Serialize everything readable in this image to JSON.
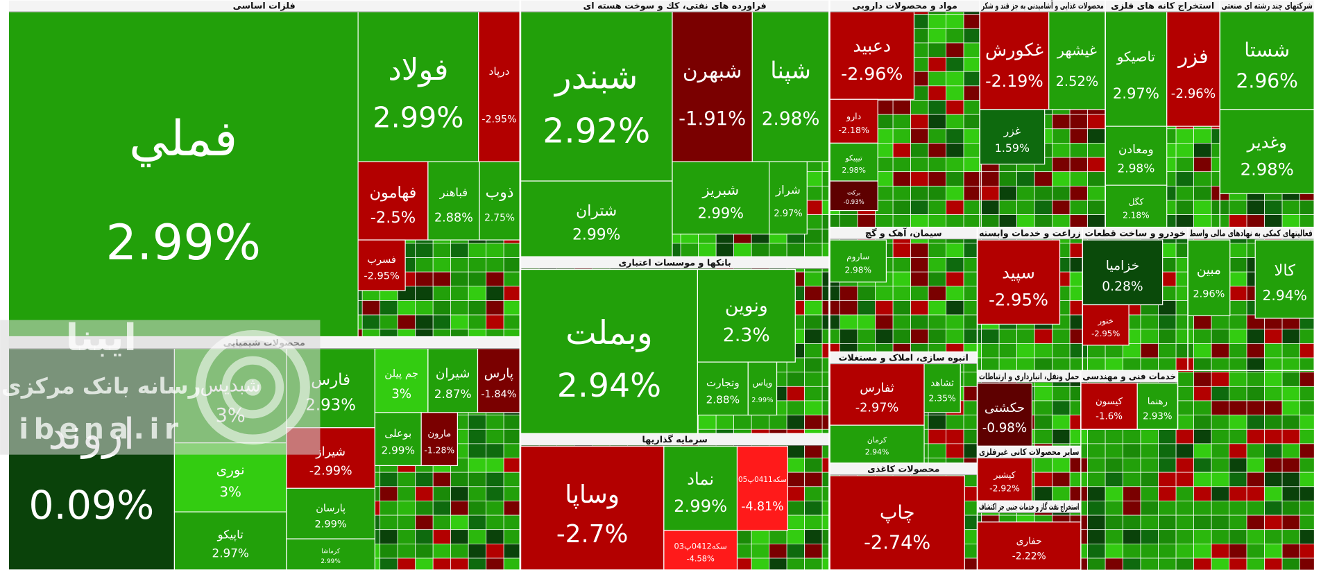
{
  "watermark": {
    "brand": "ایبنا",
    "tagline": "رسانه بانک مرکزی",
    "site": "ibena.ir"
  },
  "sectors": [
    {
      "name": "فلزات اساسی",
      "tiles": [
        {
          "name": "فملي",
          "change": "2.99%",
          "color": "#22a00a"
        },
        {
          "name": "فولاد",
          "change": "2.99%",
          "color": "#22a00a"
        },
        {
          "name": "درپاد",
          "change": "-2.95%",
          "color": "#b30000"
        },
        {
          "name": "فهامون",
          "change": "-2.5%",
          "color": "#b30000"
        },
        {
          "name": "فباهنر",
          "change": "2.88%",
          "color": "#22a00a"
        },
        {
          "name": "ذوب",
          "change": "2.75%",
          "color": "#22a00a"
        },
        {
          "name": "فسرب",
          "change": "-2.95%",
          "color": "#b30000"
        }
      ]
    },
    {
      "name": "محصولات شیمیایی",
      "tiles": [
        {
          "name": "اروند",
          "change": "0.09%",
          "color": "#0a420a"
        },
        {
          "name": "شبدیس",
          "change": "3%",
          "color": "#22a00a"
        },
        {
          "name": "نوری",
          "change": "3%",
          "color": "#33cc11"
        },
        {
          "name": "تاپیکو",
          "change": "2.97%",
          "color": "#22a00a"
        },
        {
          "name": "فارس",
          "change": "2.93%",
          "color": "#22a00a"
        },
        {
          "name": "شیراز",
          "change": "-2.99%",
          "color": "#b30000"
        },
        {
          "name": "پارسان",
          "change": "2.99%",
          "color": "#22a00a"
        },
        {
          "name": "کرماشا",
          "change": "2.99%",
          "color": "#22a00a"
        },
        {
          "name": "جم پیلن",
          "change": "3%",
          "color": "#33cc11"
        },
        {
          "name": "شیران",
          "change": "2.87%",
          "color": "#22a00a"
        },
        {
          "name": "پارس",
          "change": "-1.84%",
          "color": "#7a0000"
        },
        {
          "name": "بوعلی",
          "change": "2.99%",
          "color": "#22a00a"
        },
        {
          "name": "مارون",
          "change": "-1.28%",
          "color": "#7a0000"
        }
      ]
    },
    {
      "name": "فراورده های نفتی، کك و سوخت هسته ای",
      "tiles": [
        {
          "name": "شبندر",
          "change": "2.92%",
          "color": "#22a00a"
        },
        {
          "name": "شتران",
          "change": "2.99%",
          "color": "#22a00a"
        },
        {
          "name": "شبهرن",
          "change": "-1.91%",
          "color": "#7a0000"
        },
        {
          "name": "شپنا",
          "change": "2.98%",
          "color": "#22a00a"
        },
        {
          "name": "شبریز",
          "change": "2.99%",
          "color": "#22a00a"
        },
        {
          "name": "شراز",
          "change": "2.97%",
          "color": "#22a00a"
        }
      ]
    },
    {
      "name": "بانکها و موسسات اعتباری",
      "tiles": [
        {
          "name": "وبملت",
          "change": "2.94%",
          "color": "#22a00a"
        },
        {
          "name": "ونوين",
          "change": "2.3%",
          "color": "#22a00a"
        },
        {
          "name": "وتجارت",
          "change": "2.88%",
          "color": "#22a00a"
        },
        {
          "name": "وپاس",
          "change": "2.99%",
          "color": "#22a00a"
        }
      ]
    },
    {
      "name": "سرمایه گذاریها",
      "tiles": [
        {
          "name": "وساپا",
          "change": "-2.7%",
          "color": "#b30000"
        },
        {
          "name": "نماد",
          "change": "2.99%",
          "color": "#22a00a"
        },
        {
          "name": "سکه0411پ05",
          "change": "-4.81%",
          "color": "#ff1a1a"
        },
        {
          "name": "سکه0412پ03",
          "change": "-4.58%",
          "color": "#ff1a1a"
        }
      ]
    },
    {
      "name": "مواد و محصولات دارویی",
      "tiles": [
        {
          "name": "دعبید",
          "change": "-2.96%",
          "color": "#b30000"
        },
        {
          "name": "دارو",
          "change": "-2.18%",
          "color": "#b30000"
        },
        {
          "name": "تیپیکو",
          "change": "2.98%",
          "color": "#22a00a"
        },
        {
          "name": "برکت",
          "change": "-0.93%",
          "color": "#5e0000"
        }
      ]
    },
    {
      "name": "محصولات غذایی و آشامیدنی به جز قند و شکر",
      "tiles": [
        {
          "name": "غکورش",
          "change": "-2.19%",
          "color": "#b30000"
        },
        {
          "name": "غیشهر",
          "change": "2.52%",
          "color": "#22a00a"
        },
        {
          "name": "غزر",
          "change": "1.59%",
          "color": "#0e6a0e"
        }
      ]
    },
    {
      "name": "استخراج کانه های فلزی",
      "tiles": [
        {
          "name": "تاصیکو",
          "change": "2.97%",
          "color": "#22a00a"
        },
        {
          "name": "فزر",
          "change": "-2.96%",
          "color": "#b30000"
        },
        {
          "name": "ومعادن",
          "change": "2.98%",
          "color": "#22a00a"
        },
        {
          "name": "کگل",
          "change": "2.18%",
          "color": "#22a00a"
        }
      ]
    },
    {
      "name": "شرکتهای چند رشته ای صنعتی",
      "tiles": [
        {
          "name": "شستا",
          "change": "2.96%",
          "color": "#22a00a"
        },
        {
          "name": "وغدیر",
          "change": "2.98%",
          "color": "#22a00a"
        }
      ]
    },
    {
      "name": "سیمان، آهک و گچ",
      "tiles": [
        {
          "name": "ساروم",
          "change": "2.98%",
          "color": "#22a00a"
        }
      ]
    },
    {
      "name": "انبوه سازی، املاک و مستغلات",
      "tiles": [
        {
          "name": "ثفارس",
          "change": "-2.97%",
          "color": "#b30000"
        },
        {
          "name": "ثشاهد",
          "change": "2.35%",
          "color": "#22a00a"
        },
        {
          "name": "کرمان",
          "change": "2.94%",
          "color": "#22a00a"
        }
      ]
    },
    {
      "name": "محصولات کاغذی",
      "tiles": [
        {
          "name": "چاپ",
          "change": "-2.74%",
          "color": "#b30000"
        }
      ]
    },
    {
      "name": "زراعت و خدمات وابسته",
      "tiles": [
        {
          "name": "سپید",
          "change": "-2.95%",
          "color": "#b30000"
        }
      ]
    },
    {
      "name": "خودرو و ساخت قطعات",
      "tiles": [
        {
          "name": "خزامیا",
          "change": "0.28%",
          "color": "#0a4a0a"
        },
        {
          "name": "خنور",
          "change": "-2.95%",
          "color": "#b30000"
        }
      ]
    },
    {
      "name": "فعالیتهای کمکی به نهادهای مالی واسط",
      "tiles": [
        {
          "name": "مبین",
          "change": "2.96%",
          "color": "#22a00a"
        },
        {
          "name": "کالا",
          "change": "2.94%",
          "color": "#22a00a"
        }
      ]
    },
    {
      "name": "حمل ونقل، انبارداری و ارتباطات",
      "tiles": [
        {
          "name": "حکشتی",
          "change": "-0.98%",
          "color": "#5e0000"
        }
      ]
    },
    {
      "name": "خدمات فنی و مهندسی",
      "tiles": [
        {
          "name": "کیسون",
          "change": "-1.6%",
          "color": "#b30000"
        },
        {
          "name": "رهنما",
          "change": "2.93%",
          "color": "#22a00a"
        }
      ]
    },
    {
      "name": "سایر محصولات کانی غیرفلزی",
      "tiles": [
        {
          "name": "کپشیر",
          "change": "-2.92%",
          "color": "#b30000"
        }
      ]
    },
    {
      "name": "استخراج نفت گاز و خدمات جنبی جز اکتشاف",
      "tiles": [
        {
          "name": "حفاری",
          "change": "-2.22%",
          "color": "#b30000"
        }
      ]
    }
  ]
}
